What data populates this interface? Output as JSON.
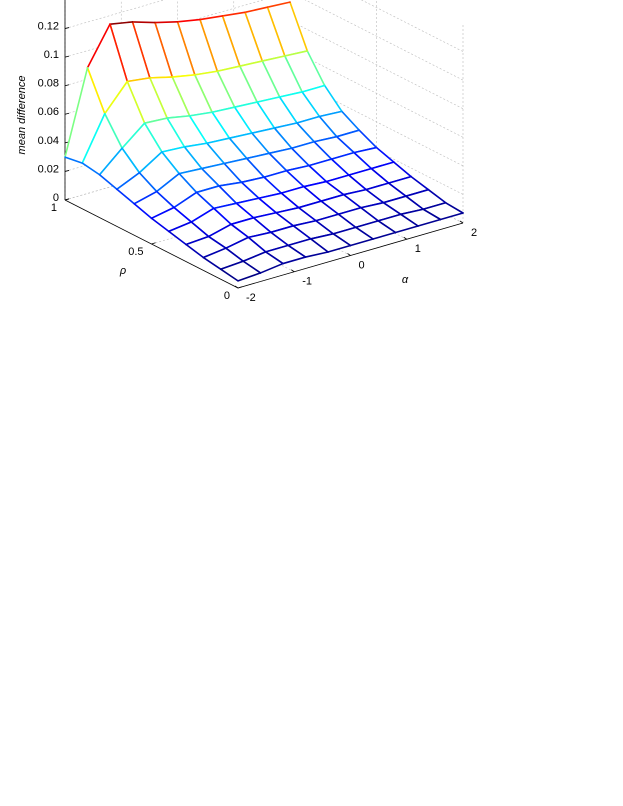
{
  "chart_data": {
    "type": "mesh",
    "xlabel": "α",
    "ylabel": "ρ",
    "zlabel": "mean difference",
    "x": [
      -2,
      -1.6,
      -1.2,
      -0.8,
      -0.4,
      0,
      0.4,
      0.8,
      1.2,
      1.6,
      2
    ],
    "y": [
      0,
      0.1,
      0.2,
      0.3,
      0.4,
      0.5,
      0.6,
      0.7,
      0.8,
      0.9,
      1
    ],
    "z": [
      [
        0.005,
        0.006,
        0.008,
        0.008,
        0.007,
        0.007,
        0.007,
        0.007,
        0.007,
        0.007,
        0.007
      ],
      [
        0.007,
        0.008,
        0.01,
        0.01,
        0.01,
        0.009,
        0.009,
        0.009,
        0.009,
        0.008,
        0.008
      ],
      [
        0.009,
        0.011,
        0.014,
        0.013,
        0.013,
        0.012,
        0.012,
        0.012,
        0.011,
        0.011,
        0.011
      ],
      [
        0.012,
        0.013,
        0.017,
        0.017,
        0.016,
        0.015,
        0.015,
        0.015,
        0.014,
        0.014,
        0.014
      ],
      [
        0.015,
        0.017,
        0.022,
        0.021,
        0.02,
        0.019,
        0.019,
        0.018,
        0.018,
        0.018,
        0.018
      ],
      [
        0.018,
        0.021,
        0.027,
        0.027,
        0.025,
        0.024,
        0.024,
        0.023,
        0.023,
        0.023,
        0.022
      ],
      [
        0.022,
        0.026,
        0.034,
        0.033,
        0.032,
        0.031,
        0.03,
        0.029,
        0.029,
        0.028,
        0.028
      ],
      [
        0.026,
        0.033,
        0.043,
        0.042,
        0.04,
        0.039,
        0.038,
        0.037,
        0.036,
        0.036,
        0.035
      ],
      [
        0.03,
        0.044,
        0.057,
        0.056,
        0.053,
        0.051,
        0.05,
        0.049,
        0.048,
        0.047,
        0.047
      ],
      [
        0.032,
        0.062,
        0.08,
        0.078,
        0.074,
        0.071,
        0.069,
        0.068,
        0.067,
        0.066,
        0.065
      ],
      [
        0.03,
        0.088,
        0.114,
        0.111,
        0.106,
        0.102,
        0.099,
        0.097,
        0.095,
        0.094,
        0.093
      ]
    ],
    "xlim": [
      -2,
      2
    ],
    "ylim": [
      0,
      1
    ],
    "zlim": [
      0,
      0.14
    ],
    "xticks": [
      -2,
      -1,
      0,
      1,
      2
    ],
    "yticks": [
      0,
      0.5,
      1
    ],
    "zticks": [
      0,
      0.02,
      0.04,
      0.06,
      0.08,
      0.1,
      0.12
    ],
    "colormap": "jet",
    "grid": true
  }
}
